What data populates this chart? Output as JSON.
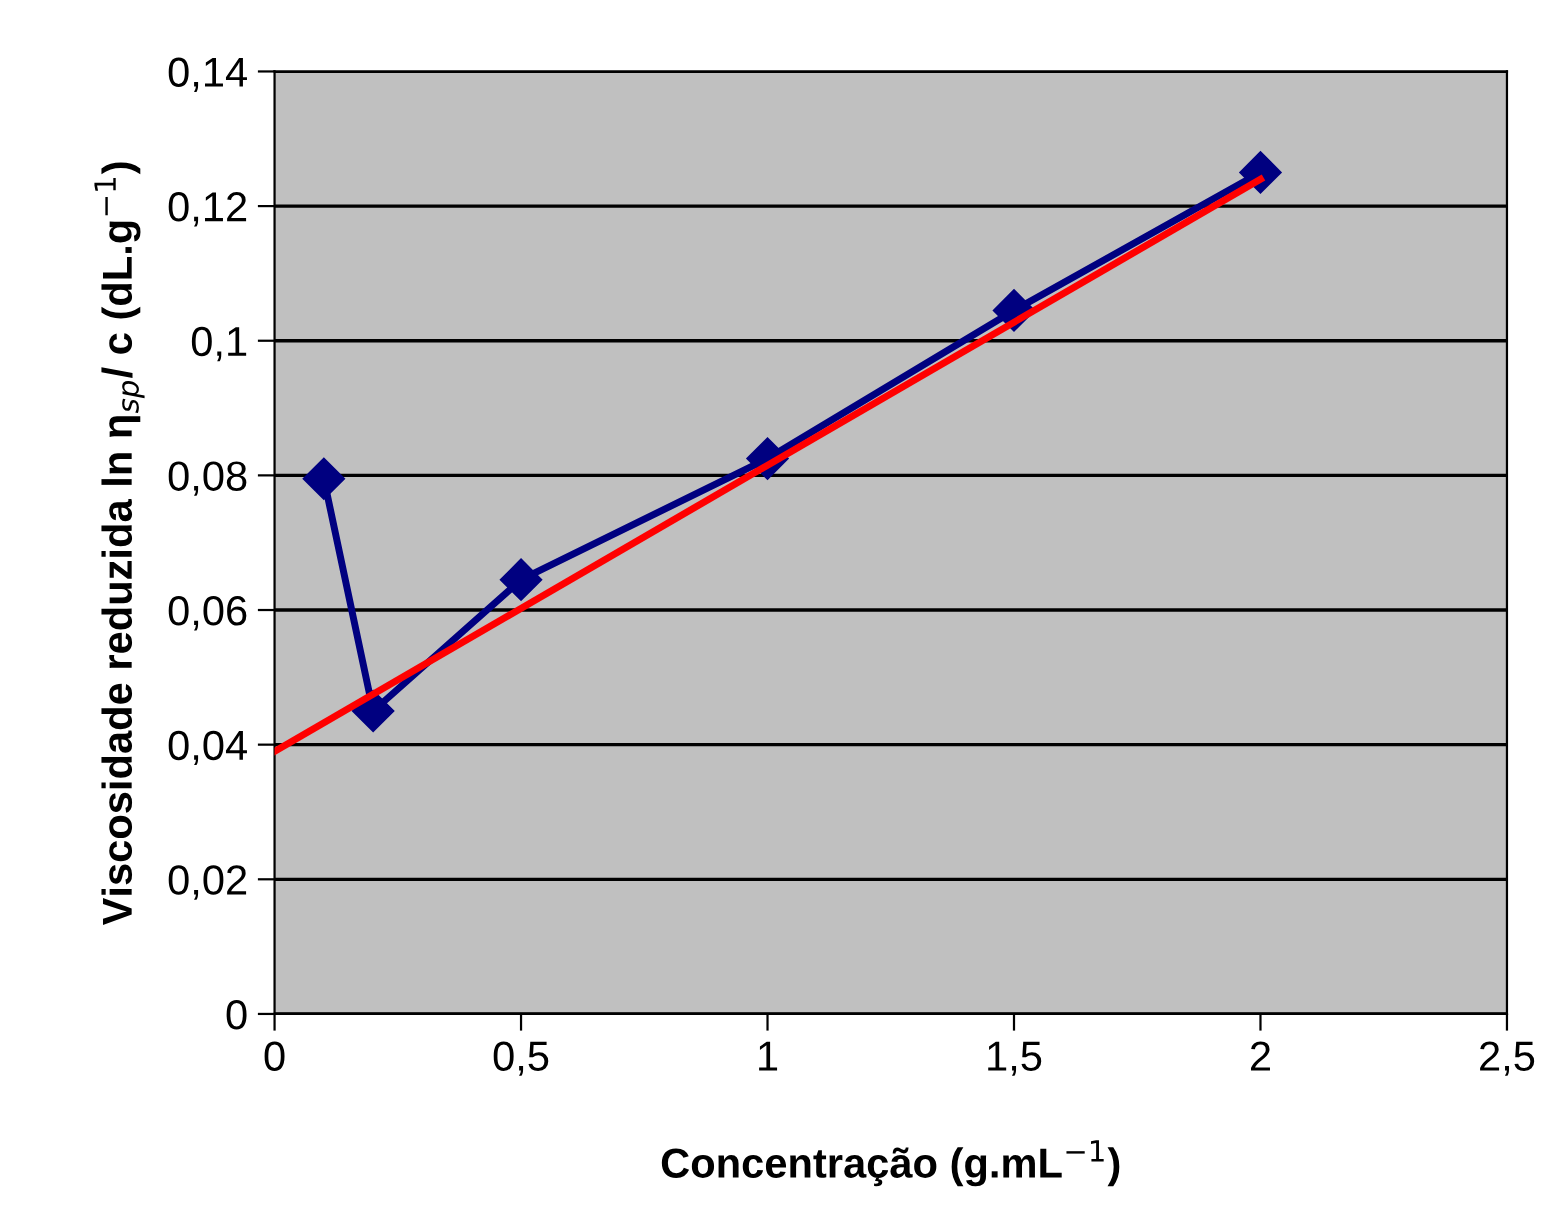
{
  "chart_data": {
    "type": "line",
    "xlabel": "Concentração (g.mL$^{−1}$)",
    "ylabel": "Viscosidade reduzida ln η$_{sp}$/ c (dL.g$^{−1}$)",
    "x": [
      0.1,
      0.2,
      0.5,
      1,
      1.5,
      2
    ],
    "series": [
      {
        "color": "#000080",
        "values": [
          0.0795,
          0.045,
          0.0645,
          0.0825,
          0.1045,
          0.125
        ],
        "marker": "diamond"
      },
      {
        "type": "line",
        "color": "#ff0000",
        "x": [
          0,
          2
        ],
        "values": [
          0.039,
          0.124
        ],
        "marker": "none"
      }
    ],
    "xlim": [
      0,
      2.5
    ],
    "xticks": [
      0,
      {
        "value": 0.5,
        "label": "0,5"
      },
      1,
      {
        "value": 1.5,
        "label": "1,5"
      },
      2,
      {
        "value": 2.5,
        "label": "2,5"
      }
    ],
    "ylim": [
      0,
      0.14
    ],
    "yticks": [
      0,
      {
        "value": 0.02,
        "label": "0,02"
      },
      {
        "value": 0.04,
        "label": "0,04"
      },
      {
        "value": 0.06,
        "label": "0,06"
      },
      {
        "value": 0.08,
        "label": "0,08"
      },
      {
        "value": 0.1,
        "label": "0,1"
      },
      {
        "value": 0.12,
        "label": "0,12"
      },
      {
        "value": 0.14,
        "label": "0,14"
      }
    ],
    "grid": "y"
  }
}
